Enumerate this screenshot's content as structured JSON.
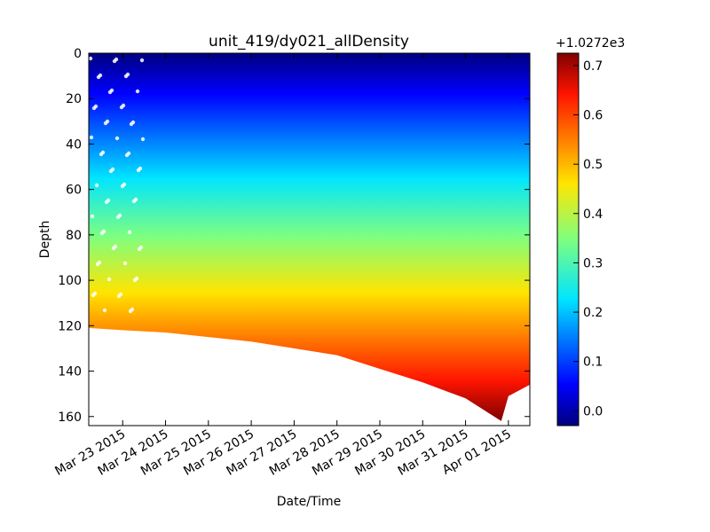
{
  "chart_data": {
    "type": "scatter",
    "title": "unit_419/dy021_allDensity",
    "xlabel": "Date/Time",
    "ylabel": "Depth",
    "x_start": "2015-03-22",
    "xlim": [
      "2015-03-22 05:00",
      "2015-04-01 12:00"
    ],
    "xticks": [
      {
        "date": "2015-03-23",
        "label": "Mar 23 2015"
      },
      {
        "date": "2015-03-24",
        "label": "Mar 24 2015"
      },
      {
        "date": "2015-03-25",
        "label": "Mar 25 2015"
      },
      {
        "date": "2015-03-26",
        "label": "Mar 26 2015"
      },
      {
        "date": "2015-03-27",
        "label": "Mar 27 2015"
      },
      {
        "date": "2015-03-28",
        "label": "Mar 28 2015"
      },
      {
        "date": "2015-03-29",
        "label": "Mar 29 2015"
      },
      {
        "date": "2015-03-30",
        "label": "Mar 30 2015"
      },
      {
        "date": "2015-03-31",
        "label": "Mar 31 2015"
      },
      {
        "date": "2015-04-01",
        "label": "Apr 01 2015"
      }
    ],
    "ylim": [
      164,
      0
    ],
    "y_inverted": true,
    "yticks": [
      0,
      20,
      40,
      60,
      80,
      100,
      120,
      140,
      160
    ],
    "colormap": "jet",
    "colorbar": {
      "offset_label": "+1.0272e3",
      "range": [
        -0.03,
        0.725
      ],
      "ticks": [
        "0.0",
        "0.1",
        "0.2",
        "0.3",
        "0.4",
        "0.5",
        "0.6",
        "0.7"
      ],
      "tick_values": [
        0.0,
        0.1,
        0.2,
        0.3,
        0.4,
        0.5,
        0.6,
        0.7
      ]
    },
    "bottom_depth_profile": [
      {
        "date": "2015-03-22 05:00",
        "depth": 121
      },
      {
        "date": "2015-03-23 00:00",
        "depth": 122
      },
      {
        "date": "2015-03-24 00:00",
        "depth": 123
      },
      {
        "date": "2015-03-25 00:00",
        "depth": 125
      },
      {
        "date": "2015-03-26 00:00",
        "depth": 127
      },
      {
        "date": "2015-03-27 00:00",
        "depth": 130
      },
      {
        "date": "2015-03-28 00:00",
        "depth": 133
      },
      {
        "date": "2015-03-29 00:00",
        "depth": 139
      },
      {
        "date": "2015-03-30 00:00",
        "depth": 145
      },
      {
        "date": "2015-03-31 00:00",
        "depth": 152
      },
      {
        "date": "2015-03-31 20:00",
        "depth": 162
      },
      {
        "date": "2015-04-01 00:00",
        "depth": 151
      },
      {
        "date": "2015-04-01 12:00",
        "depth": 146
      }
    ],
    "density_anomaly_by_depth": [
      {
        "depth": 0,
        "value": 0.0
      },
      {
        "depth": 20,
        "value": 0.12
      },
      {
        "depth": 40,
        "value": 0.22
      },
      {
        "depth": 60,
        "value": 0.3
      },
      {
        "depth": 80,
        "value": 0.38
      },
      {
        "depth": 100,
        "value": 0.5
      },
      {
        "depth": 120,
        "value": 0.61
      },
      {
        "depth": 140,
        "value": 0.67
      },
      {
        "depth": 160,
        "value": 0.72
      }
    ],
    "grid": false
  }
}
